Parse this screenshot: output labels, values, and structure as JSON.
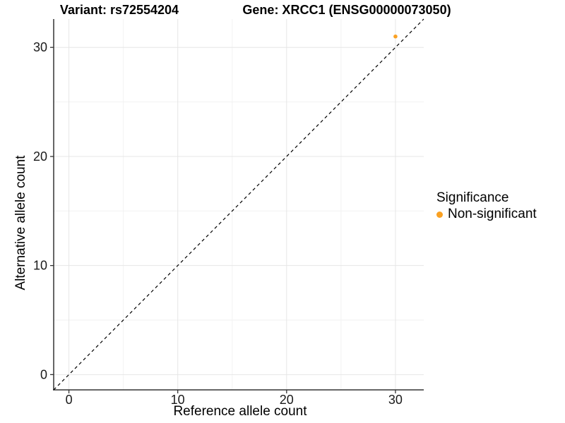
{
  "figure": {
    "title_left": "Variant: rs72554204",
    "title_right": "Gene: XRCC1 (ENSG00000073050)"
  },
  "axes": {
    "x_label": "Reference allele count",
    "y_label": "Alternative allele count"
  },
  "legend": {
    "title": "Significance",
    "items": [
      {
        "label": "Non-significant",
        "color": "#FAA122"
      }
    ]
  },
  "chart_data": {
    "type": "scatter",
    "title": "Variant: rs72554204 — Gene: XRCC1 (ENSG00000073050)",
    "xlabel": "Reference allele count",
    "ylabel": "Alternative allele count",
    "xlim": [
      -1.4,
      32.6
    ],
    "ylim": [
      -1.4,
      32.6
    ],
    "x_ticks": [
      0,
      10,
      20,
      30
    ],
    "y_ticks": [
      0,
      10,
      20,
      30
    ],
    "x_minor_ticks": [
      5,
      15,
      25
    ],
    "y_minor_ticks": [
      5,
      15,
      25
    ],
    "grid": "major+minor",
    "legend_position": "right",
    "reference_line": {
      "type": "identity",
      "style": "dashed",
      "color": "#000000"
    },
    "series": [
      {
        "name": "Non-significant",
        "color": "#FAA122",
        "points": [
          {
            "x": 30,
            "y": 31
          }
        ]
      }
    ],
    "style": {
      "major_grid_color": "#E6E6E6",
      "minor_grid_color": "#F2F2F2",
      "axis_line_color": "#333333",
      "tick_label_color": "#1A1A1A",
      "point_radius": 2.8
    }
  }
}
